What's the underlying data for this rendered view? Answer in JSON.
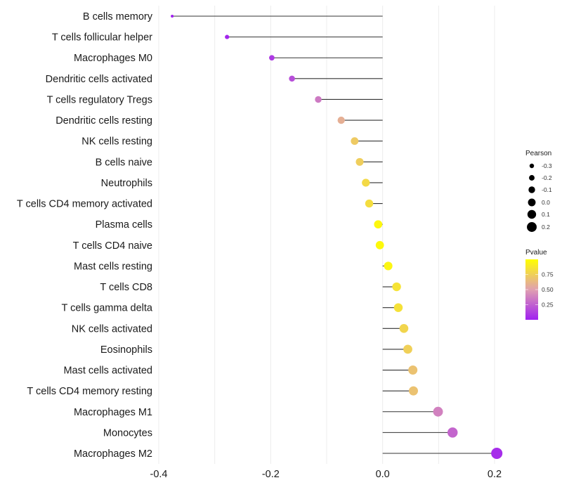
{
  "chart_data": {
    "type": "scatter",
    "subtype": "lollipop",
    "title": "",
    "xlabel": "",
    "ylabel": "",
    "xlim": [
      -0.4,
      0.2
    ],
    "x_ticks": [
      -0.4,
      -0.2,
      0.0,
      0.2
    ],
    "x_tick_labels": [
      "-0.4",
      "-0.2",
      "0.0",
      "0.2"
    ],
    "grid": true,
    "categories": [
      "B cells memory",
      "T cells follicular helper",
      "Macrophages M0",
      "Dendritic cells activated",
      "T cells regulatory  Tregs ",
      "Dendritic cells resting",
      "NK cells resting",
      "B cells naive",
      "Neutrophils",
      "T cells CD4 memory activated",
      "Plasma cells",
      "T cells CD4 naive",
      "Mast cells resting",
      "T cells CD8",
      "T cells gamma delta",
      "NK cells activated",
      "Eosinophils",
      "Mast cells activated",
      "T cells CD4 memory resting",
      "Macrophages M1",
      "Monocytes",
      "Macrophages M2"
    ],
    "pearson": [
      -0.376,
      -0.278,
      -0.198,
      -0.162,
      -0.115,
      -0.074,
      -0.05,
      -0.041,
      -0.03,
      -0.024,
      -0.008,
      -0.005,
      0.01,
      0.025,
      0.028,
      0.038,
      0.045,
      0.054,
      0.055,
      0.099,
      0.125,
      0.204
    ],
    "pvalue": [
      0.0,
      0.02,
      0.1,
      0.18,
      0.35,
      0.58,
      0.72,
      0.74,
      0.8,
      0.82,
      0.96,
      0.97,
      0.95,
      0.85,
      0.84,
      0.78,
      0.75,
      0.68,
      0.68,
      0.38,
      0.27,
      0.05
    ],
    "legend": {
      "size": {
        "title": "Pearson",
        "labels": [
          "-0.3",
          "-0.2",
          "-0.1",
          "0.0",
          "0.1",
          "0.2"
        ],
        "values": [
          -0.3,
          -0.2,
          -0.1,
          0.0,
          0.1,
          0.2
        ]
      },
      "color": {
        "title": "Pvalue",
        "labels": [
          "0.75",
          "0.50",
          "0.25"
        ],
        "values": [
          0.75,
          0.5,
          0.25
        ],
        "range": [
          0.0,
          1.0
        ],
        "low_color": "#A020F0",
        "mid_color": "#E0A0B0",
        "high_color": "#FFFF00"
      },
      "placement": "right"
    }
  }
}
